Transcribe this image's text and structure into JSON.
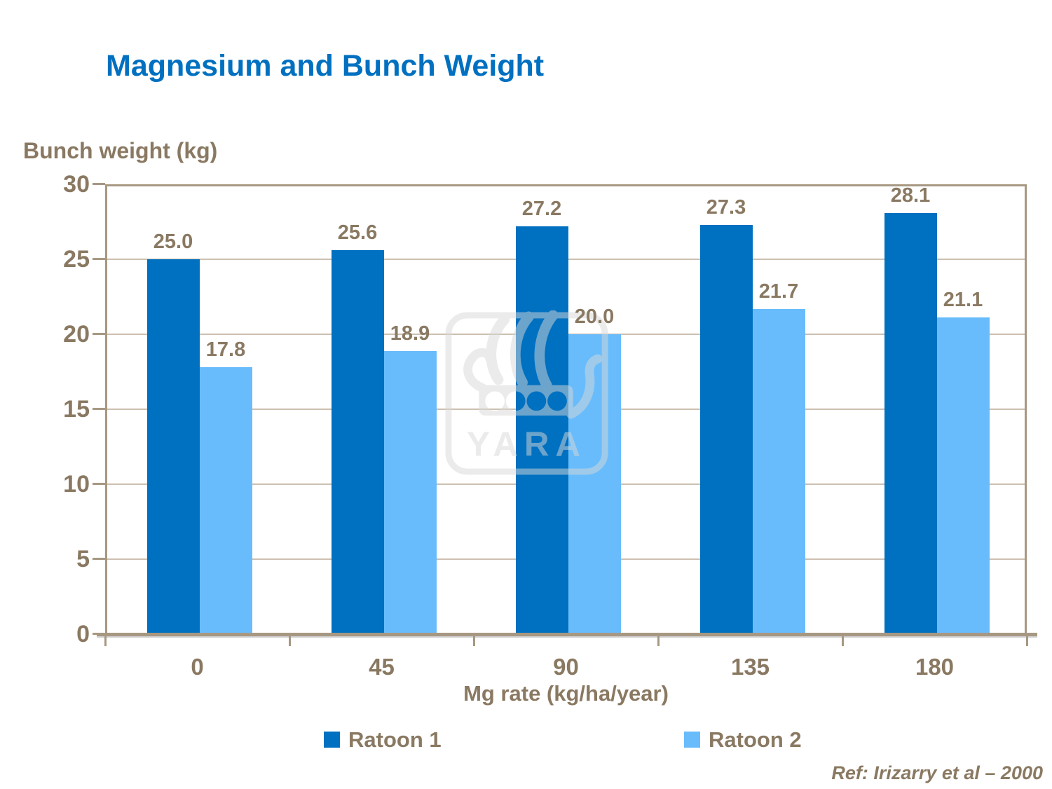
{
  "slide": {
    "title": "Magnesium and Bunch Weight",
    "reference": "Ref: Irizarry et al – 2000",
    "watermark_text": "YARA"
  },
  "chart_data": {
    "type": "bar",
    "title": "Magnesium and Bunch Weight",
    "categories": [
      "0",
      "45",
      "90",
      "135",
      "180"
    ],
    "series": [
      {
        "name": "Ratoon 1",
        "color": "#0070C0",
        "values": [
          25.0,
          25.6,
          27.2,
          27.3,
          28.1
        ]
      },
      {
        "name": "Ratoon 2",
        "color": "#69BCFC",
        "values": [
          17.8,
          18.9,
          20.0,
          21.7,
          21.1
        ]
      }
    ],
    "xlabel": "Mg rate (kg/ha/year)",
    "ylabel": "Bunch weight (kg)",
    "ylim": [
      0,
      30
    ],
    "yticks": [
      0,
      5,
      10,
      15,
      20,
      25,
      30
    ],
    "grid": true,
    "legend_position": "bottom",
    "value_labels": true,
    "value_label_decimals": 1
  },
  "colors": {
    "title_blue": "#0070C0",
    "text_brown": "#8A7962",
    "frame_tan": "#A79882",
    "gridline_tan": "#CDC0B0",
    "watermark_gray": "#D8D8D8"
  }
}
